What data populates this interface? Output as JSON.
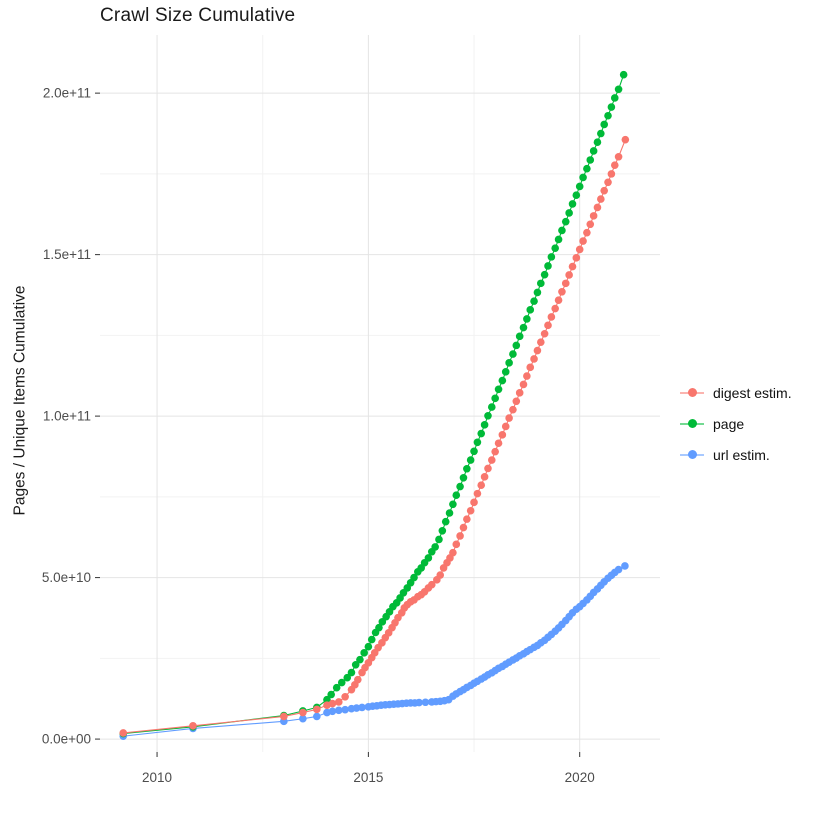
{
  "chart_data": {
    "type": "scatter",
    "title": "Crawl Size Cumulative",
    "xlabel": "",
    "ylabel": "Pages / Unique Items Cumulative",
    "values_unit": "pages (billions, 1e9)",
    "x_unit": "year (decimal)",
    "xlim": [
      2008.65,
      2021.9
    ],
    "ylim_billions": [
      -4,
      218
    ],
    "x_ticks": [
      {
        "v": 2010,
        "label": "2010"
      },
      {
        "v": 2015,
        "label": "2015"
      },
      {
        "v": 2020,
        "label": "2020"
      }
    ],
    "x_minor_ticks": [
      2012.5,
      2017.5
    ],
    "y_ticks": [
      {
        "v": 0,
        "label": "0.0e+00"
      },
      {
        "v": 50,
        "label": "5.0e+10"
      },
      {
        "v": 100,
        "label": "1.0e+11"
      },
      {
        "v": 150,
        "label": "1.5e+11"
      },
      {
        "v": 200,
        "label": "2.0e+11"
      }
    ],
    "y_minor_ticks": [
      25,
      75,
      125,
      175
    ],
    "legend_position": "right",
    "grid": true,
    "draw_order": [
      "url estim.",
      "page",
      "digest estim."
    ],
    "legend_order": [
      "digest estim.",
      "page",
      "url estim."
    ],
    "series": [
      {
        "name": "digest estim.",
        "color": "#F8766D",
        "points": [
          [
            2009.2,
            1.9
          ],
          [
            2010.85,
            4.1
          ],
          [
            2013.0,
            7.0
          ],
          [
            2013.45,
            8.2
          ],
          [
            2013.78,
            9.2
          ],
          [
            2014.02,
            10.5
          ],
          [
            2014.15,
            11.0
          ],
          [
            2014.3,
            11.5
          ],
          [
            2014.45,
            13.1
          ],
          [
            2014.6,
            15.3
          ],
          [
            2014.68,
            16.8
          ],
          [
            2014.75,
            18.4
          ],
          [
            2014.85,
            20.6
          ],
          [
            2014.92,
            22.1
          ],
          [
            2015.0,
            23.6
          ],
          [
            2015.08,
            25.2
          ],
          [
            2015.15,
            26.7
          ],
          [
            2015.23,
            28.3
          ],
          [
            2015.32,
            29.8
          ],
          [
            2015.4,
            31.4
          ],
          [
            2015.48,
            32.9
          ],
          [
            2015.56,
            34.5
          ],
          [
            2015.63,
            36.0
          ],
          [
            2015.7,
            37.6
          ],
          [
            2015.79,
            39.1
          ],
          [
            2015.85,
            40.6
          ],
          [
            2015.92,
            41.6
          ],
          [
            2016.0,
            42.5
          ],
          [
            2016.08,
            43.1
          ],
          [
            2016.17,
            44.1
          ],
          [
            2016.25,
            44.7
          ],
          [
            2016.33,
            45.6
          ],
          [
            2016.42,
            46.8
          ],
          [
            2016.5,
            47.8
          ],
          [
            2016.62,
            49.3
          ],
          [
            2016.7,
            50.8
          ],
          [
            2016.78,
            53.0
          ],
          [
            2016.86,
            54.6
          ],
          [
            2016.93,
            56.1
          ],
          [
            2017.0,
            57.7
          ],
          [
            2017.08,
            60.3
          ],
          [
            2017.17,
            62.9
          ],
          [
            2017.25,
            65.5
          ],
          [
            2017.33,
            68.1
          ],
          [
            2017.42,
            70.7
          ],
          [
            2017.5,
            73.3
          ],
          [
            2017.58,
            76.0
          ],
          [
            2017.67,
            78.6
          ],
          [
            2017.75,
            81.2
          ],
          [
            2017.83,
            83.8
          ],
          [
            2017.92,
            86.4
          ],
          [
            2018.0,
            89.0
          ],
          [
            2018.08,
            91.6
          ],
          [
            2018.17,
            94.2
          ],
          [
            2018.25,
            96.8
          ],
          [
            2018.33,
            99.4
          ],
          [
            2018.42,
            102.0
          ],
          [
            2018.5,
            104.6
          ],
          [
            2018.58,
            107.2
          ],
          [
            2018.67,
            109.8
          ],
          [
            2018.75,
            112.4
          ],
          [
            2018.83,
            115.1
          ],
          [
            2018.92,
            117.7
          ],
          [
            2019.0,
            120.3
          ],
          [
            2019.08,
            122.9
          ],
          [
            2019.17,
            125.5
          ],
          [
            2019.25,
            128.1
          ],
          [
            2019.33,
            130.7
          ],
          [
            2019.42,
            133.3
          ],
          [
            2019.5,
            135.9
          ],
          [
            2019.58,
            138.5
          ],
          [
            2019.67,
            141.1
          ],
          [
            2019.75,
            143.7
          ],
          [
            2019.83,
            146.3
          ],
          [
            2019.92,
            149.0
          ],
          [
            2020.0,
            151.6
          ],
          [
            2020.08,
            154.2
          ],
          [
            2020.17,
            156.8
          ],
          [
            2020.25,
            159.4
          ],
          [
            2020.33,
            162.0
          ],
          [
            2020.42,
            164.6
          ],
          [
            2020.5,
            167.2
          ],
          [
            2020.58,
            169.8
          ],
          [
            2020.67,
            172.4
          ],
          [
            2020.75,
            175.0
          ],
          [
            2020.83,
            177.7
          ],
          [
            2020.92,
            180.3
          ],
          [
            2021.08,
            185.6
          ]
        ]
      },
      {
        "name": "page",
        "color": "#00BA38",
        "points": [
          [
            2009.2,
            1.7
          ],
          [
            2010.85,
            3.8
          ],
          [
            2013.0,
            7.3
          ],
          [
            2013.45,
            8.7
          ],
          [
            2013.78,
            9.8
          ],
          [
            2014.02,
            12.2
          ],
          [
            2014.12,
            13.8
          ],
          [
            2014.25,
            15.9
          ],
          [
            2014.37,
            17.5
          ],
          [
            2014.5,
            19.0
          ],
          [
            2014.6,
            20.6
          ],
          [
            2014.7,
            23.0
          ],
          [
            2014.8,
            24.6
          ],
          [
            2014.9,
            26.7
          ],
          [
            2015.0,
            28.6
          ],
          [
            2015.08,
            30.8
          ],
          [
            2015.17,
            33.0
          ],
          [
            2015.25,
            34.5
          ],
          [
            2015.33,
            36.3
          ],
          [
            2015.42,
            37.9
          ],
          [
            2015.5,
            39.4
          ],
          [
            2015.58,
            41.0
          ],
          [
            2015.67,
            42.2
          ],
          [
            2015.75,
            43.7
          ],
          [
            2015.83,
            45.3
          ],
          [
            2015.92,
            46.8
          ],
          [
            2016.0,
            48.4
          ],
          [
            2016.08,
            50.0
          ],
          [
            2016.17,
            51.8
          ],
          [
            2016.25,
            53.0
          ],
          [
            2016.33,
            54.6
          ],
          [
            2016.42,
            56.1
          ],
          [
            2016.5,
            58.0
          ],
          [
            2016.58,
            59.5
          ],
          [
            2016.67,
            61.8
          ],
          [
            2016.75,
            64.5
          ],
          [
            2016.83,
            67.3
          ],
          [
            2016.92,
            70.0
          ],
          [
            2017.0,
            72.7
          ],
          [
            2017.08,
            75.5
          ],
          [
            2017.17,
            78.2
          ],
          [
            2017.25,
            80.9
          ],
          [
            2017.33,
            83.7
          ],
          [
            2017.42,
            86.4
          ],
          [
            2017.5,
            89.1
          ],
          [
            2017.58,
            91.9
          ],
          [
            2017.67,
            94.6
          ],
          [
            2017.75,
            97.3
          ],
          [
            2017.83,
            100.1
          ],
          [
            2017.92,
            102.8
          ],
          [
            2018.0,
            105.5
          ],
          [
            2018.08,
            108.3
          ],
          [
            2018.17,
            111.0
          ],
          [
            2018.25,
            113.7
          ],
          [
            2018.33,
            116.5
          ],
          [
            2018.42,
            119.2
          ],
          [
            2018.5,
            121.9
          ],
          [
            2018.58,
            124.7
          ],
          [
            2018.67,
            127.4
          ],
          [
            2018.75,
            130.1
          ],
          [
            2018.83,
            132.9
          ],
          [
            2018.92,
            135.6
          ],
          [
            2019.0,
            138.3
          ],
          [
            2019.08,
            141.1
          ],
          [
            2019.17,
            143.8
          ],
          [
            2019.25,
            146.5
          ],
          [
            2019.33,
            149.3
          ],
          [
            2019.42,
            152.0
          ],
          [
            2019.5,
            154.7
          ],
          [
            2019.58,
            157.5
          ],
          [
            2019.67,
            160.2
          ],
          [
            2019.75,
            162.9
          ],
          [
            2019.83,
            165.7
          ],
          [
            2019.92,
            168.4
          ],
          [
            2020.0,
            171.1
          ],
          [
            2020.08,
            173.9
          ],
          [
            2020.17,
            176.6
          ],
          [
            2020.25,
            179.3
          ],
          [
            2020.33,
            182.1
          ],
          [
            2020.42,
            184.8
          ],
          [
            2020.5,
            187.5
          ],
          [
            2020.58,
            190.3
          ],
          [
            2020.67,
            193.0
          ],
          [
            2020.75,
            195.7
          ],
          [
            2020.83,
            198.5
          ],
          [
            2020.92,
            201.2
          ],
          [
            2021.04,
            205.7
          ]
        ]
      },
      {
        "name": "url estim.",
        "color": "#619CFF",
        "points": [
          [
            2009.2,
            0.9
          ],
          [
            2010.85,
            3.3
          ],
          [
            2013.0,
            5.5
          ],
          [
            2013.45,
            6.3
          ],
          [
            2013.78,
            7.0
          ],
          [
            2014.02,
            8.2
          ],
          [
            2014.15,
            8.6
          ],
          [
            2014.3,
            8.9
          ],
          [
            2014.45,
            9.1
          ],
          [
            2014.6,
            9.4
          ],
          [
            2014.72,
            9.6
          ],
          [
            2014.85,
            9.8
          ],
          [
            2015.0,
            10.0
          ],
          [
            2015.1,
            10.2
          ],
          [
            2015.2,
            10.3
          ],
          [
            2015.3,
            10.5
          ],
          [
            2015.4,
            10.6
          ],
          [
            2015.5,
            10.7
          ],
          [
            2015.6,
            10.8
          ],
          [
            2015.7,
            10.9
          ],
          [
            2015.8,
            11.0
          ],
          [
            2015.9,
            11.1
          ],
          [
            2016.0,
            11.2
          ],
          [
            2016.1,
            11.2
          ],
          [
            2016.2,
            11.3
          ],
          [
            2016.35,
            11.4
          ],
          [
            2016.5,
            11.5
          ],
          [
            2016.6,
            11.6
          ],
          [
            2016.7,
            11.7
          ],
          [
            2016.8,
            11.9
          ],
          [
            2016.9,
            12.2
          ],
          [
            2017.0,
            13.3
          ],
          [
            2017.08,
            14.0
          ],
          [
            2017.17,
            14.7
          ],
          [
            2017.25,
            15.3
          ],
          [
            2017.33,
            16.0
          ],
          [
            2017.42,
            16.6
          ],
          [
            2017.5,
            17.3
          ],
          [
            2017.58,
            17.9
          ],
          [
            2017.67,
            18.6
          ],
          [
            2017.75,
            19.2
          ],
          [
            2017.83,
            19.9
          ],
          [
            2017.92,
            20.5
          ],
          [
            2018.0,
            21.2
          ],
          [
            2018.08,
            21.9
          ],
          [
            2018.17,
            22.5
          ],
          [
            2018.25,
            23.2
          ],
          [
            2018.33,
            23.8
          ],
          [
            2018.42,
            24.5
          ],
          [
            2018.5,
            25.1
          ],
          [
            2018.58,
            25.8
          ],
          [
            2018.67,
            26.4
          ],
          [
            2018.75,
            27.1
          ],
          [
            2018.83,
            27.7
          ],
          [
            2018.92,
            28.4
          ],
          [
            2019.0,
            29.0
          ],
          [
            2019.08,
            29.8
          ],
          [
            2019.17,
            30.6
          ],
          [
            2019.25,
            31.5
          ],
          [
            2019.33,
            32.4
          ],
          [
            2019.42,
            33.4
          ],
          [
            2019.5,
            34.4
          ],
          [
            2019.58,
            35.5
          ],
          [
            2019.67,
            36.7
          ],
          [
            2019.75,
            37.9
          ],
          [
            2019.83,
            39.1
          ],
          [
            2019.92,
            40.2
          ],
          [
            2020.0,
            41.0
          ],
          [
            2020.08,
            42.0
          ],
          [
            2020.17,
            43.1
          ],
          [
            2020.25,
            44.2
          ],
          [
            2020.33,
            45.4
          ],
          [
            2020.42,
            46.5
          ],
          [
            2020.5,
            47.6
          ],
          [
            2020.58,
            48.7
          ],
          [
            2020.67,
            49.8
          ],
          [
            2020.75,
            50.7
          ],
          [
            2020.83,
            51.6
          ],
          [
            2020.92,
            52.5
          ],
          [
            2021.07,
            53.6
          ]
        ]
      }
    ],
    "colors": {
      "digest_estim": "#F8766D",
      "page": "#00BA38",
      "url_estim": "#619CFF",
      "grid_major": "#e4e4e4",
      "grid_minor": "#f2f2f2",
      "axis_text": "#4d4d4d",
      "tick_mark": "#333333"
    }
  }
}
